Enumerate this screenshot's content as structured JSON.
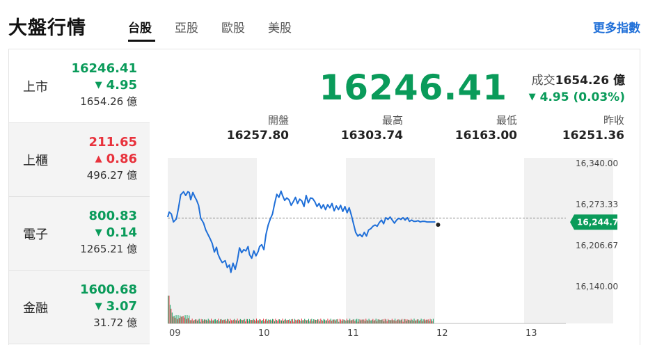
{
  "header": {
    "title": "大盤行情",
    "tabs": [
      {
        "label": "台股",
        "active": true
      },
      {
        "label": "亞股",
        "active": false
      },
      {
        "label": "歐股",
        "active": false
      },
      {
        "label": "美股",
        "active": false
      }
    ],
    "more_link": "更多指數"
  },
  "sidebar": {
    "items": [
      {
        "name": "上市",
        "price": "16246.41",
        "change": "4.95",
        "direction": "down",
        "volume": "1654.26 億",
        "active": true
      },
      {
        "name": "上櫃",
        "price": "211.65",
        "change": "0.86",
        "direction": "up",
        "volume": "496.27 億",
        "active": false
      },
      {
        "name": "電子",
        "price": "800.83",
        "change": "0.14",
        "direction": "down",
        "volume": "1265.21 億",
        "active": false
      },
      {
        "name": "金融",
        "price": "1600.68",
        "change": "3.07",
        "direction": "down",
        "volume": "31.72 億",
        "active": false
      }
    ]
  },
  "main": {
    "price": "16246.41",
    "turnover_label": "成交",
    "turnover_value": "1654.26 億",
    "change": "4.95 (0.03%)",
    "stats": [
      {
        "label": "開盤",
        "value": "16257.80"
      },
      {
        "label": "最高",
        "value": "16303.74"
      },
      {
        "label": "最低",
        "value": "16163.00"
      },
      {
        "label": "昨收",
        "value": "16251.36"
      }
    ]
  },
  "colors": {
    "up": "#e8323c",
    "down": "#0a9b5a",
    "line": "#1f6fd8",
    "accent": "#1f6fd8"
  },
  "chart_data": {
    "type": "line",
    "x_ticks": [
      "09",
      "10",
      "11",
      "12",
      "13"
    ],
    "y_ticks": [
      "16,340.00",
      "16,273.33",
      "16,206.67",
      "16,140.00"
    ],
    "ylim": [
      16140,
      16340
    ],
    "reference": 16251.36,
    "current_label": "16,244.73",
    "current_value": 16244.73,
    "series": [
      {
        "x": [
          0,
          2,
          5,
          8,
          12,
          15,
          18,
          22,
          25,
          28,
          30,
          32,
          35,
          38,
          40,
          43,
          46,
          50,
          53,
          56,
          59,
          62,
          65,
          68,
          70,
          73,
          76,
          80,
          83,
          86,
          88,
          91,
          94,
          97,
          100,
          103,
          106,
          109,
          112,
          114,
          117,
          120,
          123,
          126,
          128,
          131,
          134,
          137,
          140,
          143,
          146,
          149,
          152,
          155,
          158,
          160,
          163,
          166,
          169,
          172,
          175,
          178,
          181,
          184,
          187,
          190,
          193,
          196,
          199,
          202,
          205,
          208,
          211,
          214,
          217,
          220,
          223,
          226,
          229,
          232,
          235,
          238,
          241,
          244,
          247,
          250,
          253,
          256,
          259,
          262,
          265,
          268,
          271,
          274,
          277,
          280,
          283,
          286,
          289,
          292,
          295,
          298,
          301,
          304,
          307,
          310,
          313,
          316,
          319,
          322,
          325,
          328,
          331,
          334,
          337,
          340,
          343,
          346,
          349,
          352,
          355,
          358,
          361,
          364,
          367,
          370,
          373
        ],
        "values": [
          16253,
          16261,
          16258,
          16245,
          16250,
          16268,
          16289,
          16294,
          16288,
          16294,
          16293,
          16281,
          16293,
          16285,
          16281,
          16272,
          16251,
          16243,
          16232,
          16225,
          16218,
          16210,
          16196,
          16204,
          16193,
          16185,
          16179,
          16182,
          16171,
          16175,
          16163,
          16178,
          16168,
          16182,
          16203,
          16195,
          16200,
          16198,
          16205,
          16192,
          16186,
          16198,
          16190,
          16197,
          16205,
          16208,
          16200,
          16225,
          16240,
          16250,
          16258,
          16275,
          16290,
          16285,
          16295,
          16288,
          16280,
          16284,
          16281,
          16272,
          16278,
          16285,
          16275,
          16282,
          16279,
          16270,
          16288,
          16276,
          16284,
          16283,
          16278,
          16270,
          16275,
          16267,
          16273,
          16265,
          16273,
          16268,
          16275,
          16263,
          16271,
          16265,
          16272,
          16262,
          16270,
          16260,
          16268,
          16256,
          16242,
          16228,
          16222,
          16225,
          16221,
          16228,
          16222,
          16232,
          16234,
          16238,
          16240,
          16238,
          16244,
          16248,
          16242,
          16252,
          16249,
          16253,
          16248,
          16243,
          16248,
          16251,
          16249,
          16252,
          16248,
          16252,
          16246,
          16248,
          16246,
          16246,
          16247,
          16245,
          16246,
          16246,
          16245,
          16245,
          16245,
          16245,
          16245
        ]
      }
    ]
  }
}
